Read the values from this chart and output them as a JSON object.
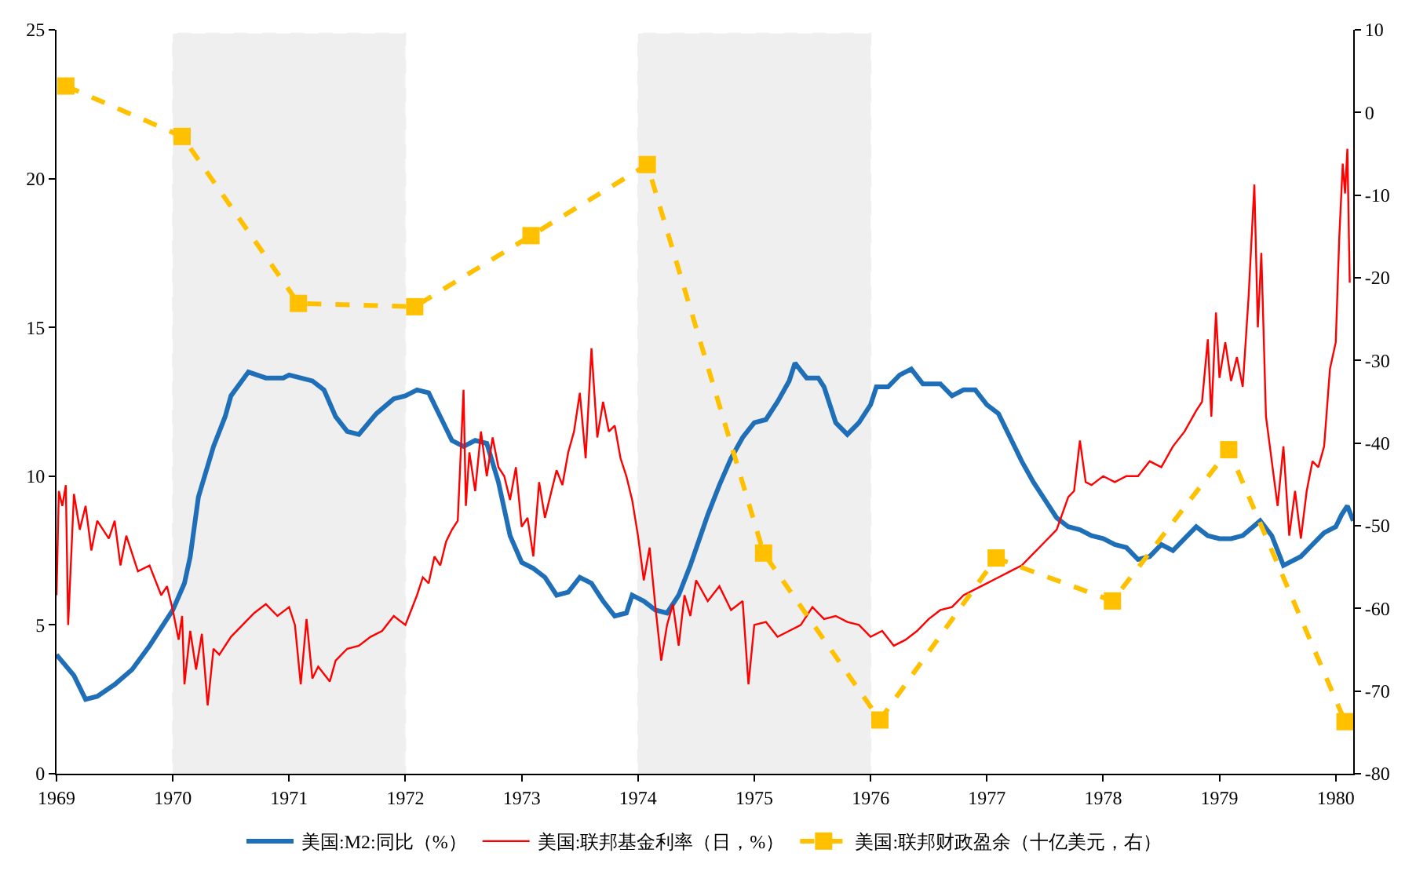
{
  "chart_data": {
    "type": "line",
    "xlim": [
      1969,
      1980.15
    ],
    "xticks": [
      1969,
      1970,
      1971,
      1972,
      1973,
      1974,
      1975,
      1976,
      1977,
      1978,
      1979,
      1980
    ],
    "ylim": [
      0,
      25
    ],
    "yticks": [
      0,
      5,
      10,
      15,
      20,
      25
    ],
    "y2lim": [
      -80,
      10
    ],
    "y2ticks": [
      -80,
      -70,
      -60,
      -50,
      -40,
      -30,
      -20,
      -10,
      0,
      10
    ],
    "grid": false,
    "legend": "bottom",
    "bands": [
      {
        "axis": "x",
        "from": 1970,
        "to": 1972,
        "color": "#000000"
      },
      {
        "axis": "x",
        "from": 1974,
        "to": 1976,
        "color": "#000000"
      }
    ],
    "series": [
      {
        "name": "美国:M2:同比（%）",
        "color": "#1f6fb8",
        "marker": "none",
        "line_style": "solid",
        "x": [
          1969.0,
          1969.15,
          1969.25,
          1969.35,
          1969.5,
          1969.65,
          1969.8,
          1970.0,
          1970.1,
          1970.15,
          1970.22,
          1970.35,
          1970.45,
          1970.5,
          1970.65,
          1970.8,
          1970.95,
          1971.0,
          1971.1,
          1971.2,
          1971.3,
          1971.4,
          1971.5,
          1971.6,
          1971.75,
          1971.9,
          1972.0,
          1972.1,
          1972.2,
          1972.3,
          1972.4,
          1972.5,
          1972.6,
          1972.7,
          1972.8,
          1972.9,
          1973.0,
          1973.1,
          1973.2,
          1973.3,
          1973.4,
          1973.5,
          1973.6,
          1973.7,
          1973.8,
          1973.9,
          1973.95,
          1974.05,
          1974.15,
          1974.25,
          1974.35,
          1974.45,
          1974.6,
          1974.7,
          1974.8,
          1974.9,
          1975.0,
          1975.1,
          1975.2,
          1975.3,
          1975.35,
          1975.45,
          1975.55,
          1975.6,
          1975.7,
          1975.8,
          1975.9,
          1976.0,
          1976.05,
          1976.15,
          1976.25,
          1976.35,
          1976.45,
          1976.6,
          1976.7,
          1976.8,
          1976.9,
          1977.0,
          1977.1,
          1977.2,
          1977.3,
          1977.4,
          1977.5,
          1977.6,
          1977.7,
          1977.8,
          1977.9,
          1978.0,
          1978.1,
          1978.2,
          1978.3,
          1978.4,
          1978.5,
          1978.6,
          1978.7,
          1978.8,
          1978.9,
          1979.0,
          1979.1,
          1979.2,
          1979.35,
          1979.45,
          1979.55,
          1979.7,
          1979.8,
          1979.9,
          1980.0,
          1980.05,
          1980.1,
          1980.15
        ],
        "values": [
          4.0,
          3.3,
          2.5,
          2.6,
          3.0,
          3.5,
          4.3,
          5.5,
          6.4,
          7.3,
          9.3,
          11.0,
          12.0,
          12.7,
          13.5,
          13.3,
          13.3,
          13.4,
          13.3,
          13.2,
          12.9,
          12.0,
          11.5,
          11.4,
          12.1,
          12.6,
          12.7,
          12.9,
          12.8,
          12.0,
          11.2,
          11.0,
          11.2,
          11.1,
          9.8,
          8.0,
          7.1,
          6.9,
          6.6,
          6.0,
          6.1,
          6.6,
          6.4,
          5.8,
          5.3,
          5.4,
          6.0,
          5.8,
          5.5,
          5.4,
          6.0,
          7.0,
          8.7,
          9.7,
          10.6,
          11.3,
          11.8,
          11.9,
          12.5,
          13.2,
          13.8,
          13.3,
          13.3,
          13.0,
          11.8,
          11.4,
          11.8,
          12.4,
          13.0,
          13.0,
          13.4,
          13.6,
          13.1,
          13.1,
          12.7,
          12.9,
          12.9,
          12.4,
          12.1,
          11.3,
          10.5,
          9.8,
          9.2,
          8.6,
          8.3,
          8.2,
          8.0,
          7.9,
          7.7,
          7.6,
          7.2,
          7.3,
          7.7,
          7.5,
          7.9,
          8.3,
          8.0,
          7.9,
          7.9,
          8.0,
          8.5,
          8.0,
          7.0,
          7.3,
          7.7,
          8.1,
          8.3,
          8.7,
          9.0,
          8.5
        ]
      },
      {
        "name": "美国:联邦基金利率（日，%）",
        "color": "#ff0000",
        "marker": "none",
        "line_style": "solid",
        "x": [
          1969.0,
          1969.02,
          1969.05,
          1969.08,
          1969.1,
          1969.15,
          1969.2,
          1969.25,
          1969.3,
          1969.35,
          1969.45,
          1969.5,
          1969.55,
          1969.6,
          1969.7,
          1969.8,
          1969.9,
          1969.95,
          1970.0,
          1970.05,
          1970.08,
          1970.1,
          1970.15,
          1970.2,
          1970.25,
          1970.3,
          1970.35,
          1970.4,
          1970.5,
          1970.6,
          1970.7,
          1970.8,
          1970.9,
          1971.0,
          1971.05,
          1971.1,
          1971.15,
          1971.2,
          1971.25,
          1971.35,
          1971.4,
          1971.5,
          1971.6,
          1971.7,
          1971.8,
          1971.9,
          1972.0,
          1972.05,
          1972.1,
          1972.15,
          1972.2,
          1972.25,
          1972.3,
          1972.35,
          1972.4,
          1972.45,
          1972.5,
          1972.52,
          1972.55,
          1972.6,
          1972.65,
          1972.7,
          1972.75,
          1972.8,
          1972.85,
          1972.9,
          1972.95,
          1973.0,
          1973.05,
          1973.1,
          1973.15,
          1973.2,
          1973.3,
          1973.35,
          1973.4,
          1973.45,
          1973.5,
          1973.55,
          1973.6,
          1973.65,
          1973.7,
          1973.75,
          1973.8,
          1973.85,
          1973.9,
          1973.95,
          1974.0,
          1974.05,
          1974.1,
          1974.15,
          1974.2,
          1974.25,
          1974.3,
          1974.35,
          1974.4,
          1974.45,
          1974.5,
          1974.6,
          1974.7,
          1974.8,
          1974.9,
          1974.95,
          1975.0,
          1975.1,
          1975.2,
          1975.3,
          1975.4,
          1975.5,
          1975.6,
          1975.7,
          1975.8,
          1975.9,
          1976.0,
          1976.1,
          1976.2,
          1976.3,
          1976.4,
          1976.5,
          1976.6,
          1976.7,
          1976.8,
          1976.9,
          1977.0,
          1977.1,
          1977.2,
          1977.3,
          1977.4,
          1977.5,
          1977.6,
          1977.7,
          1977.75,
          1977.8,
          1977.85,
          1977.9,
          1978.0,
          1978.1,
          1978.2,
          1978.3,
          1978.4,
          1978.5,
          1978.6,
          1978.7,
          1978.8,
          1978.85,
          1978.9,
          1978.93,
          1978.97,
          1979.0,
          1979.05,
          1979.1,
          1979.15,
          1979.2,
          1979.25,
          1979.3,
          1979.33,
          1979.36,
          1979.4,
          1979.45,
          1979.5,
          1979.55,
          1979.6,
          1979.65,
          1979.7,
          1979.75,
          1979.8,
          1979.85,
          1979.9,
          1979.95,
          1980.0,
          1980.03,
          1980.06,
          1980.08,
          1980.1,
          1980.12
        ],
        "values": [
          6.0,
          9.5,
          9.0,
          9.7,
          5.0,
          9.4,
          8.2,
          9.0,
          7.5,
          8.5,
          7.9,
          8.5,
          7.0,
          8.0,
          6.8,
          7.0,
          6.0,
          6.3,
          5.5,
          4.5,
          5.3,
          3.0,
          4.8,
          3.5,
          4.7,
          2.3,
          4.2,
          4.0,
          4.6,
          5.0,
          5.4,
          5.7,
          5.3,
          5.6,
          5.0,
          3.0,
          5.2,
          3.2,
          3.6,
          3.1,
          3.8,
          4.2,
          4.3,
          4.6,
          4.8,
          5.3,
          5.0,
          5.5,
          6.0,
          6.6,
          6.4,
          7.3,
          7.0,
          7.8,
          8.2,
          8.5,
          12.9,
          9.0,
          10.8,
          9.5,
          11.5,
          10.0,
          11.3,
          10.3,
          10.0,
          9.2,
          10.3,
          8.3,
          8.6,
          7.3,
          9.8,
          8.6,
          10.2,
          9.7,
          10.8,
          11.5,
          12.8,
          10.6,
          14.3,
          11.3,
          12.5,
          11.5,
          11.7,
          10.6,
          10.0,
          9.2,
          8.0,
          6.5,
          7.6,
          5.6,
          3.8,
          5.0,
          5.7,
          4.3,
          6.0,
          5.3,
          6.5,
          5.8,
          6.3,
          5.5,
          5.8,
          3.0,
          5.0,
          5.1,
          4.6,
          4.8,
          5.0,
          5.6,
          5.2,
          5.3,
          5.1,
          5.0,
          4.6,
          4.8,
          4.3,
          4.5,
          4.8,
          5.2,
          5.5,
          5.6,
          6.0,
          6.2,
          6.4,
          6.6,
          6.8,
          7.0,
          7.4,
          7.8,
          8.2,
          9.3,
          9.5,
          11.2,
          9.8,
          9.7,
          10.0,
          9.8,
          10.0,
          10.0,
          10.5,
          10.3,
          11.0,
          11.5,
          12.2,
          12.5,
          14.6,
          12.0,
          15.5,
          13.3,
          14.5,
          13.2,
          14.0,
          13.0,
          16.0,
          19.8,
          15.0,
          17.5,
          12.0,
          10.5,
          9.0,
          11.0,
          8.0,
          9.5,
          7.9,
          9.5,
          10.5,
          10.3,
          11.0,
          13.6,
          14.5,
          18.0,
          20.5,
          19.5,
          21.0,
          16.5
        ]
      },
      {
        "name": "美国:联邦财政盈余（十亿美元，右）",
        "color": "#ffc000",
        "axis": "y2",
        "marker": "square",
        "line_style": "dashed",
        "x": [
          1969.08,
          1970.08,
          1971.08,
          1972.08,
          1973.08,
          1974.08,
          1975.08,
          1976.08,
          1977.08,
          1978.08,
          1979.08,
          1980.08
        ],
        "values": [
          3.2,
          -2.9,
          -23.1,
          -23.5,
          -14.9,
          -6.3,
          -53.3,
          -73.5,
          -53.9,
          -59.1,
          -40.8,
          -73.7
        ]
      }
    ]
  }
}
